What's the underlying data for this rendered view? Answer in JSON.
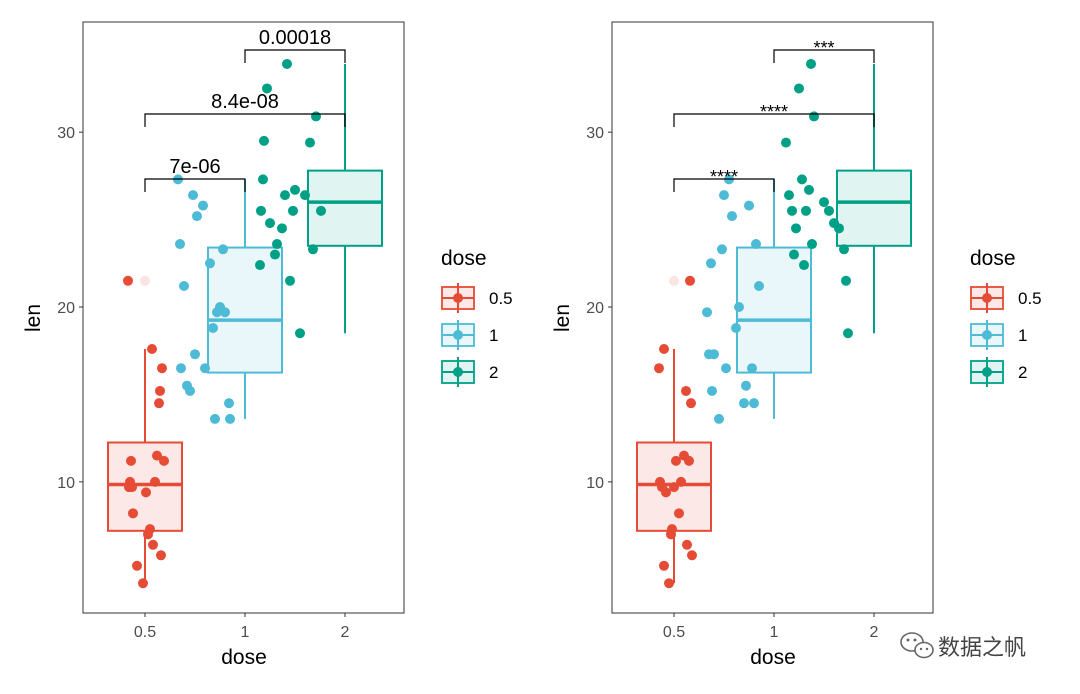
{
  "chart_data": [
    {
      "type": "boxplot",
      "panel": "left",
      "xlabel": "dose",
      "ylabel": "len",
      "categories": [
        "0.5",
        "1",
        "2"
      ],
      "ylim": [
        2.5,
        36.3
      ],
      "yticks": [
        10,
        20,
        30
      ],
      "boxes": [
        {
          "group": "0.5",
          "q1": 7.2,
          "median": 9.85,
          "q3": 12.25,
          "whisker_low": 4.2,
          "whisker_high": 17.6,
          "outliers": [
            21.5
          ]
        },
        {
          "group": "1",
          "q1": 16.25,
          "median": 19.25,
          "q3": 23.4,
          "whisker_low": 13.6,
          "whisker_high": 27.3,
          "outliers": []
        },
        {
          "group": "2",
          "q1": 23.5,
          "median": 26.0,
          "q3": 27.8,
          "whisker_low": 18.5,
          "whisker_high": 33.9,
          "outliers": []
        }
      ],
      "points": [
        {
          "group": "0.5",
          "x": [
            0.33,
            0.34,
            0.35,
            0.36,
            0.37,
            0.42,
            0.48,
            0.51,
            0.53,
            0.58,
            0.6,
            0.62,
            0.64,
            0.65,
            0.66,
            0.67,
            0.69,
            0.38,
            0.55,
            0.57
          ],
          "y": [
            21.5,
            9.7,
            10.0,
            11.2,
            9.7,
            5.2,
            4.2,
            9.4,
            7.0,
            6.4,
            10.0,
            11.5,
            14.5,
            15.2,
            5.8,
            16.5,
            11.2,
            8.2,
            7.3,
            17.6
          ]
        },
        {
          "group": "1",
          "x": [
            0.83,
            0.85,
            0.86,
            0.89,
            0.92,
            0.95,
            0.98,
            1.0,
            1.02,
            1.08,
            1.1,
            1.15,
            1.18,
            1.2,
            1.22,
            1.25,
            1.28,
            1.3,
            1.34,
            1.35
          ],
          "y": [
            27.3,
            23.6,
            16.5,
            21.2,
            15.5,
            15.2,
            26.4,
            17.3,
            25.2,
            25.8,
            16.5,
            22.5,
            18.8,
            13.6,
            19.7,
            20.0,
            23.3,
            19.7,
            14.5,
            13.6
          ]
        },
        {
          "group": "2",
          "x": [
            1.65,
            1.66,
            1.68,
            1.69,
            1.72,
            1.75,
            1.8,
            1.82,
            1.87,
            1.9,
            1.92,
            1.95,
            1.98,
            2.0,
            2.05,
            2.1,
            2.15,
            2.18,
            2.21,
            2.26
          ],
          "y": [
            22.4,
            25.5,
            27.3,
            29.5,
            32.5,
            24.8,
            23.0,
            23.6,
            24.5,
            26.4,
            33.9,
            21.5,
            25.5,
            26.7,
            18.5,
            26.4,
            29.4,
            23.3,
            30.9,
            25.5
          ]
        }
      ],
      "comparisons": [
        {
          "groups": [
            "0.5",
            "1"
          ],
          "label": "7e-06"
        },
        {
          "groups": [
            "0.5",
            "2"
          ],
          "label": "8.4e-08"
        },
        {
          "groups": [
            "1",
            "2"
          ],
          "label": "0.00018"
        }
      ]
    },
    {
      "type": "boxplot",
      "panel": "right",
      "xlabel": "dose",
      "ylabel": "len",
      "categories": [
        "0.5",
        "1",
        "2"
      ],
      "ylim": [
        2.5,
        36.3
      ],
      "yticks": [
        10,
        20,
        30
      ],
      "boxes": [
        {
          "group": "0.5",
          "q1": 7.2,
          "median": 9.85,
          "q3": 12.25,
          "whisker_low": 4.2,
          "whisker_high": 17.6,
          "outliers": [
            21.5
          ]
        },
        {
          "group": "1",
          "q1": 16.25,
          "median": 19.25,
          "q3": 23.4,
          "whisker_low": 13.6,
          "whisker_high": 27.3,
          "outliers": []
        },
        {
          "group": "2",
          "q1": 23.5,
          "median": 26.0,
          "q3": 27.8,
          "whisker_low": 18.5,
          "whisker_high": 33.9,
          "outliers": []
        }
      ],
      "points": [
        {
          "group": "0.5",
          "x": [
            0.35,
            0.36,
            0.38,
            0.4,
            0.42,
            0.45,
            0.48,
            0.5,
            0.52,
            0.55,
            0.57,
            0.6,
            0.62,
            0.63,
            0.65,
            0.66,
            0.67,
            0.68,
            0.4,
            0.47
          ],
          "y": [
            16.5,
            10.0,
            9.7,
            17.6,
            9.4,
            4.2,
            7.3,
            9.7,
            11.2,
            8.2,
            10.0,
            11.5,
            15.2,
            6.4,
            11.2,
            21.5,
            14.5,
            5.8,
            5.2,
            7.0
          ]
        },
        {
          "group": "1",
          "x": [
            0.83,
            0.85,
            0.87,
            0.88,
            0.9,
            0.95,
            0.98,
            1.0,
            1.02,
            1.05,
            1.08,
            1.12,
            1.15,
            1.2,
            1.22,
            1.25,
            1.28,
            1.3,
            1.32,
            1.35
          ],
          "y": [
            19.7,
            17.3,
            22.5,
            15.2,
            17.3,
            13.6,
            23.3,
            26.4,
            16.5,
            27.3,
            25.2,
            18.8,
            20.0,
            14.5,
            15.5,
            25.8,
            16.5,
            14.5,
            23.6,
            21.2
          ]
        },
        {
          "group": "2",
          "x": [
            1.62,
            1.65,
            1.68,
            1.7,
            1.72,
            1.75,
            1.78,
            1.8,
            1.82,
            1.85,
            1.87,
            1.88,
            1.9,
            2.0,
            2.05,
            2.1,
            2.15,
            2.2,
            2.22,
            2.24
          ],
          "y": [
            29.4,
            26.4,
            25.5,
            23.0,
            24.5,
            32.5,
            27.3,
            22.4,
            25.5,
            26.7,
            33.9,
            23.6,
            30.9,
            26.0,
            25.5,
            24.8,
            24.5,
            23.3,
            21.5,
            18.5
          ]
        }
      ],
      "comparisons": [
        {
          "groups": [
            "0.5",
            "1"
          ],
          "label": "****"
        },
        {
          "groups": [
            "0.5",
            "2"
          ],
          "label": "****"
        },
        {
          "groups": [
            "1",
            "2"
          ],
          "label": "***"
        }
      ]
    }
  ],
  "legend": {
    "title": "dose",
    "items": [
      {
        "label": "0.5",
        "color": "#e64b35"
      },
      {
        "label": "1",
        "color": "#4dbbd5"
      },
      {
        "label": "2",
        "color": "#00a087"
      }
    ]
  },
  "watermark": {
    "text": "数据之帆",
    "icon": "wechat-icon"
  }
}
